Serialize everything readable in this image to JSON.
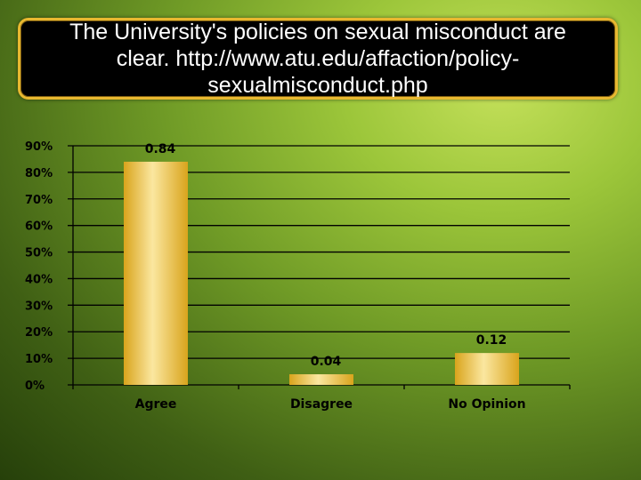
{
  "slide": {
    "title": "The University's policies on sexual misconduct are clear.  http://www.atu.edu/affaction/policy-sexualmisconduct.php",
    "title_lines": [
      "The University's policies on sexual misconduct are",
      "clear.  http://www.atu.edu/affaction/policy-",
      "sexualmisconduct.php"
    ]
  },
  "colors": {
    "bar_light": "#fbe7a0",
    "bar_dark": "#d9a41c",
    "title_border": "#e8b830",
    "gridline": "#000000"
  },
  "chart_data": {
    "type": "bar",
    "title": "",
    "xlabel": "",
    "ylabel": "",
    "categories": [
      "Agree",
      "Disagree",
      "No Opinion"
    ],
    "values": [
      0.84,
      0.04,
      0.12
    ],
    "data_labels": [
      "0.84",
      "0.04",
      "0.12"
    ],
    "y_ticks": [
      0,
      0.1,
      0.2,
      0.3,
      0.4,
      0.5,
      0.6,
      0.7,
      0.8,
      0.9
    ],
    "y_tick_labels": [
      "0%",
      "10%",
      "20%",
      "30%",
      "40%",
      "50%",
      "60%",
      "70%",
      "80%",
      "90%"
    ],
    "ylim": [
      0,
      0.9
    ],
    "grid": true,
    "legend": "none"
  }
}
